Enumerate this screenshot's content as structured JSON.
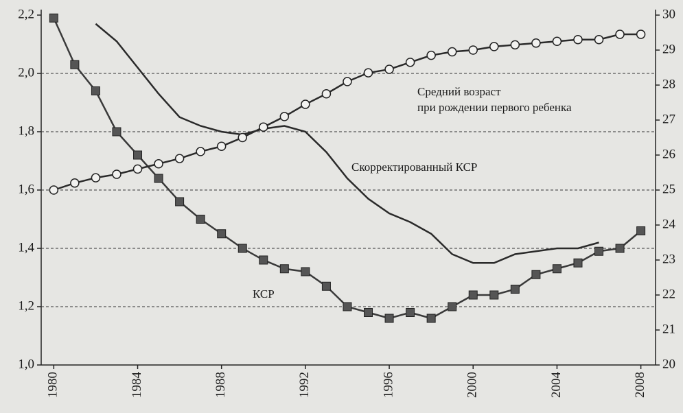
{
  "chart_data": {
    "type": "line",
    "x": [
      1980,
      1981,
      1982,
      1983,
      1984,
      1985,
      1986,
      1987,
      1988,
      1989,
      1990,
      1991,
      1992,
      1993,
      1994,
      1995,
      1996,
      1997,
      1998,
      1999,
      2000,
      2001,
      2002,
      2003,
      2004,
      2005,
      2006,
      2007,
      2008
    ],
    "xlim": [
      1979.4,
      2008.7
    ],
    "xticks": [
      1980,
      1984,
      1988,
      1992,
      1996,
      2000,
      2004,
      2008
    ],
    "ylim": [
      1.0,
      2.2
    ],
    "yticks": [
      {
        "value": 1.0,
        "label": "1,0"
      },
      {
        "value": 1.2,
        "label": "1,2"
      },
      {
        "value": 1.4,
        "label": "1,4"
      },
      {
        "value": 1.6,
        "label": "1,6"
      },
      {
        "value": 1.8,
        "label": "1,8"
      },
      {
        "value": 2.0,
        "label": "2,0"
      },
      {
        "value": 2.2,
        "label": "2,2"
      }
    ],
    "y2lim": [
      20,
      30
    ],
    "y2ticks": [
      20,
      21,
      22,
      23,
      24,
      25,
      26,
      27,
      28,
      29,
      30
    ],
    "grid": true,
    "series": [
      {
        "name": "КСР",
        "color": "#3a3a3a",
        "marker": "square",
        "values": [
          2.19,
          2.03,
          1.94,
          1.8,
          1.72,
          1.64,
          1.56,
          1.5,
          1.45,
          1.4,
          1.36,
          1.33,
          1.32,
          1.27,
          1.2,
          1.18,
          1.16,
          1.18,
          1.16,
          1.2,
          1.24,
          1.24,
          1.26,
          1.31,
          1.33,
          1.35,
          1.39,
          1.4,
          1.46
        ]
      },
      {
        "name": "Скорректированный КСР",
        "color": "#2a2a2a",
        "marker": "none",
        "values": [
          null,
          null,
          2.17,
          2.11,
          2.02,
          1.93,
          1.85,
          1.82,
          1.8,
          1.79,
          1.81,
          1.82,
          1.8,
          1.73,
          1.64,
          1.57,
          1.52,
          1.49,
          1.45,
          1.38,
          1.35,
          1.35,
          1.38,
          1.39,
          1.4,
          1.4,
          1.42,
          null,
          null
        ]
      },
      {
        "name": "Средний возраст при рождении первого ребенка",
        "color": "#2a2a2a",
        "marker": "circle",
        "axis": "y2",
        "lines": [
          "Средний возраст",
          "при рождении первого ребенка"
        ],
        "values": [
          25.0,
          25.2,
          25.35,
          25.45,
          25.6,
          25.75,
          25.9,
          26.1,
          26.25,
          26.5,
          26.8,
          27.1,
          27.45,
          27.75,
          28.1,
          28.35,
          28.45,
          28.65,
          28.85,
          28.95,
          29.0,
          29.1,
          29.15,
          29.2,
          29.25,
          29.3,
          29.3,
          29.45,
          29.45
        ]
      }
    ]
  }
}
